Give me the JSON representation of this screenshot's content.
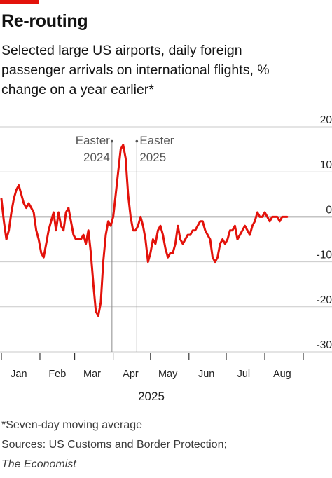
{
  "header": {
    "title": "Re-routing",
    "subtitle": "Selected large US airports, daily foreign passenger arrivals on international flights, % change on a year earlier*",
    "accent_color": "#e3120b"
  },
  "footer": {
    "footnote": "*Seven-day moving average",
    "sources": "Sources: US Customs and Border Protection;",
    "publisher": "The Economist"
  },
  "chart_data": {
    "type": "line",
    "title": "Re-routing",
    "xlabel": "2025",
    "ylabel": "",
    "ylim": [
      -30,
      20
    ],
    "yticks": [
      20,
      10,
      0,
      -10,
      -20,
      -30
    ],
    "ytick_labels": [
      "20",
      "10",
      "0",
      "-10",
      "-20",
      "-30"
    ],
    "grid": true,
    "line_color": "#e3120b",
    "months": [
      {
        "label": "Jan",
        "day": 15
      },
      {
        "label": "Feb",
        "day": 46
      },
      {
        "label": "Mar",
        "day": 74
      },
      {
        "label": "Apr",
        "day": 105
      },
      {
        "label": "May",
        "day": 135
      },
      {
        "label": "Jun",
        "day": 166
      },
      {
        "label": "Jul",
        "day": 196
      },
      {
        "label": "Aug",
        "day": 227
      }
    ],
    "month_boundaries": [
      1,
      32,
      60,
      91,
      121,
      152,
      182,
      213,
      244
    ],
    "annotations": [
      {
        "lines": [
          "Easter",
          "2024"
        ],
        "day": 90
      },
      {
        "lines": [
          "Easter",
          "2025"
        ],
        "day": 110
      }
    ],
    "series": [
      {
        "x": [
          1,
          3,
          5,
          7,
          9,
          11,
          13,
          15,
          17,
          19,
          21,
          23,
          25,
          27,
          29,
          31,
          33,
          35,
          37,
          39,
          41,
          43,
          45,
          47,
          49,
          51,
          53,
          55,
          57,
          59,
          61,
          63,
          65,
          67,
          69,
          71,
          73,
          75,
          77,
          79,
          81,
          83,
          85,
          87,
          89,
          91,
          93,
          95,
          97,
          99,
          101,
          103,
          105,
          107,
          109,
          111,
          113,
          115,
          117,
          119,
          121,
          123,
          125,
          127,
          129,
          131,
          133,
          135,
          137,
          139,
          141,
          143,
          145,
          147,
          149,
          151,
          153,
          155,
          157,
          159,
          161,
          163,
          165,
          167,
          169,
          171,
          173,
          175,
          177,
          179,
          181,
          183,
          185,
          187,
          189,
          191,
          193,
          195,
          197,
          199,
          201,
          203,
          205,
          207,
          209,
          211,
          213,
          215,
          217,
          219,
          221,
          223,
          225,
          227,
          229,
          231
        ],
        "y": [
          4,
          -1,
          -5,
          -3,
          1,
          4,
          6,
          7,
          5,
          3,
          2,
          3,
          2,
          1,
          -3,
          -5,
          -8,
          -9,
          -6,
          -3,
          -1,
          1,
          -3,
          1,
          -2,
          -3,
          1,
          2,
          -1,
          -4,
          -5,
          -5,
          -5,
          -4,
          -6,
          -3,
          -8,
          -15,
          -21,
          -22,
          -19,
          -10,
          -4,
          -1,
          -2,
          0,
          5,
          10,
          15,
          16,
          13,
          5,
          0,
          -3,
          -3,
          -2,
          0,
          -2,
          -5,
          -10,
          -8,
          -5,
          -6,
          -3,
          -2,
          -4,
          -7,
          -9,
          -8,
          -8,
          -6,
          -2,
          -5,
          -6,
          -5,
          -4,
          -4,
          -3,
          -3,
          -2,
          -1,
          -1,
          -3,
          -4,
          -5,
          -9,
          -10,
          -9,
          -6,
          -5,
          -6,
          -5,
          -3,
          -3,
          -2,
          -5,
          -4,
          -3,
          -2,
          -3,
          -4,
          -2,
          -1,
          1,
          0,
          0,
          1,
          0,
          -1,
          0,
          0,
          0,
          -1,
          0,
          0,
          0
        ]
      }
    ]
  }
}
